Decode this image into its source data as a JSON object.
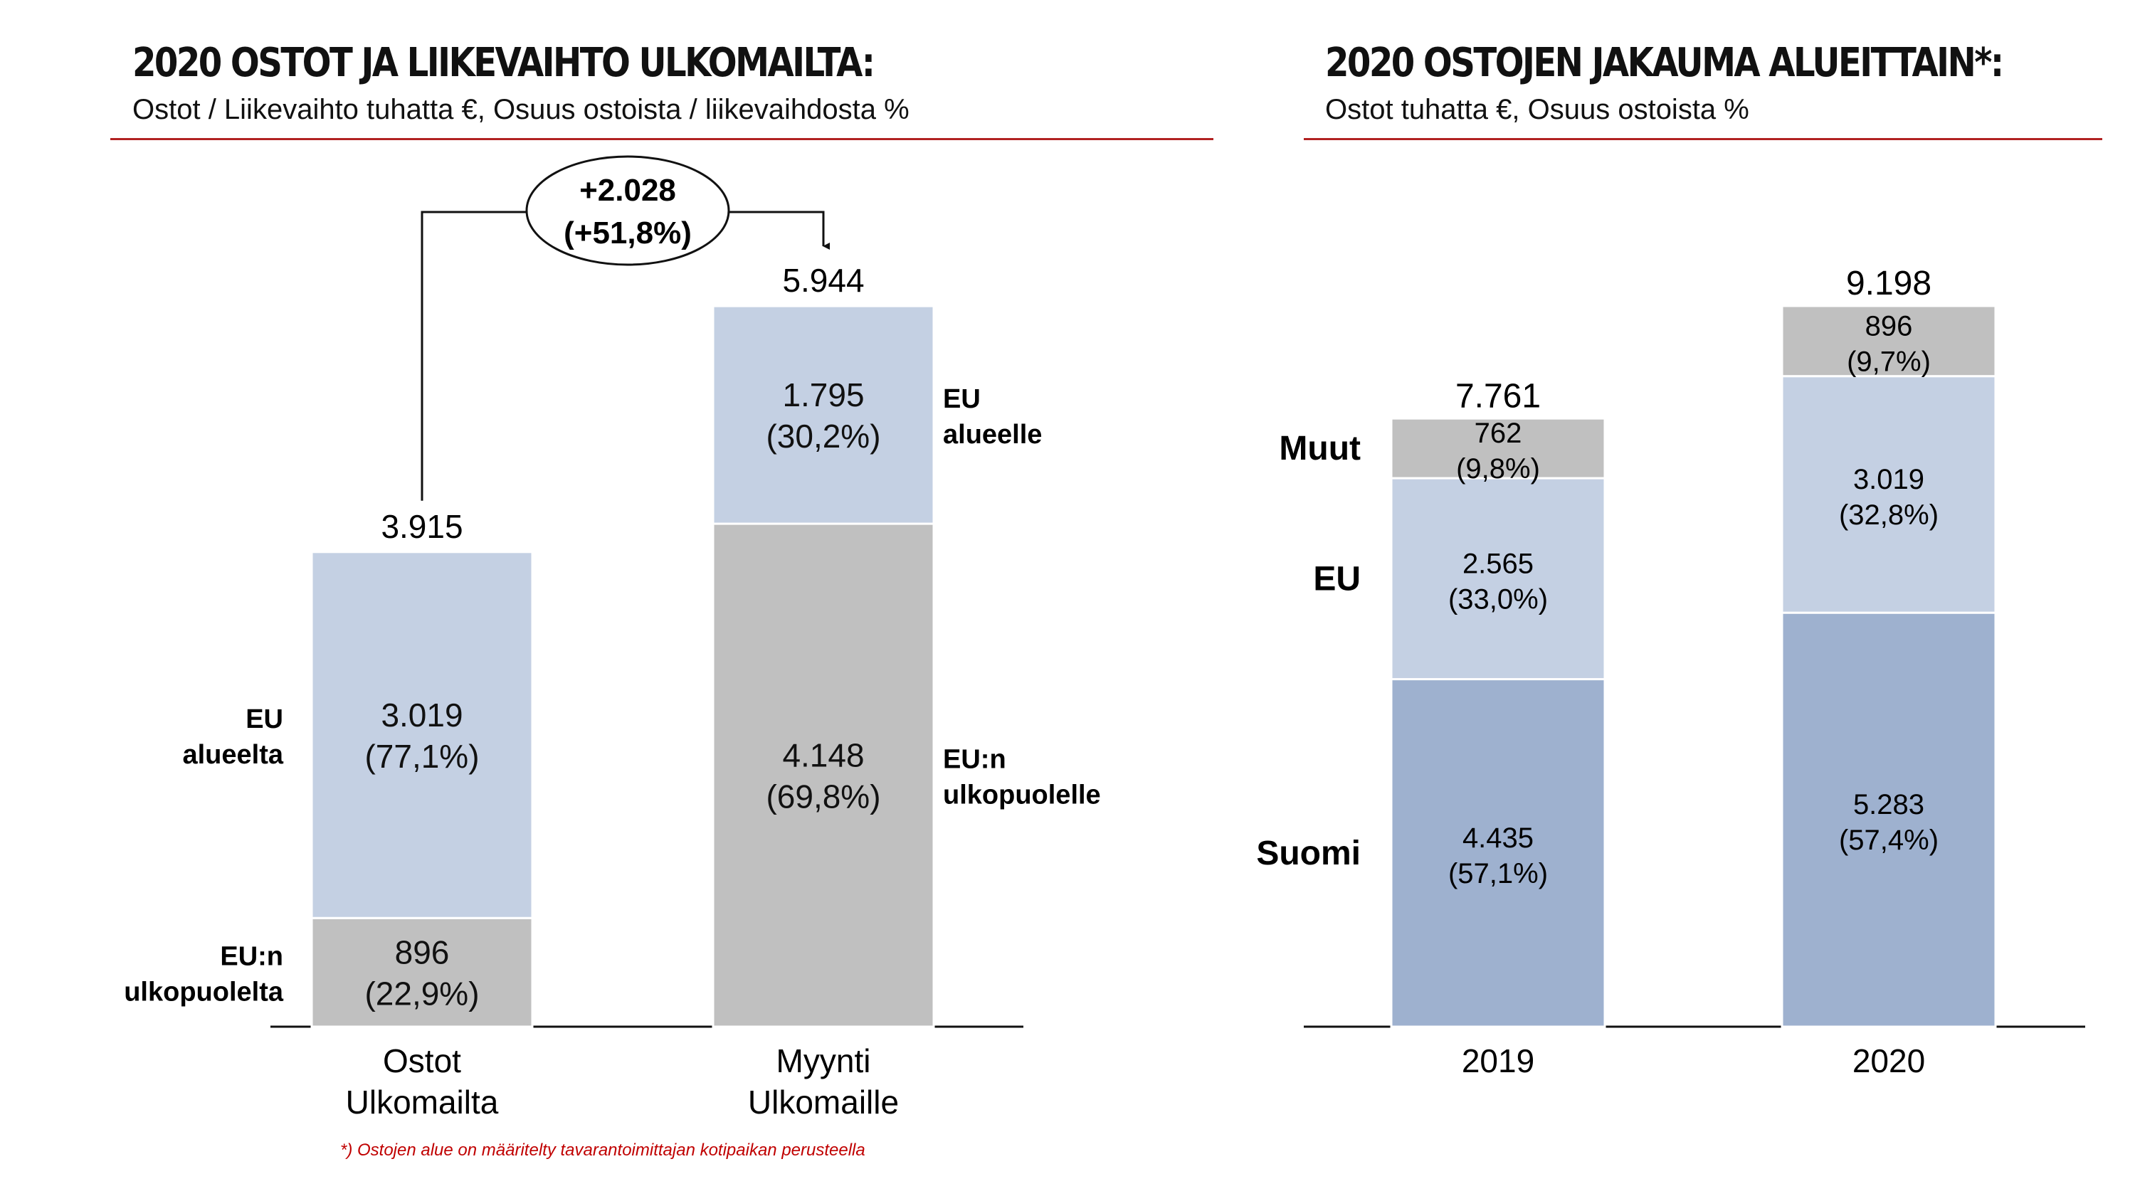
{
  "colors": {
    "eu_light": "#c4d0e3",
    "non_eu_gray": "#c0c0c0",
    "finland_blue": "#9eb1cf",
    "rule_red": "#b22222",
    "footnote_red": "#c00000"
  },
  "left_panel": {
    "title": "2020 OSTOT JA LIIKEVAIHTO ULKOMAILTA:",
    "subtitle": "Ostot / Liikevaihto tuhatta €, Osuus ostoista / liikevaihdosta %"
  },
  "right_panel": {
    "title": "2020 OSTOJEN JAKAUMA ALUEITTAIN*:",
    "subtitle": "Ostot tuhatta €, Osuus ostoista %"
  },
  "footnote": "*) Ostojen alue on määritelty tavarantoimittajan kotipaikan perusteella",
  "chart_data": [
    {
      "type": "bar",
      "stacked": true,
      "title": "2020 OSTOT JA LIIKEVAIHTO ULKOMAILTA:",
      "subtitle": "Ostot / Liikevaihto tuhatta €, Osuus ostoista / liikevaihdosta %",
      "ylim": [
        0,
        5944
      ],
      "categories": [
        {
          "line1": "Ostot",
          "line2": "Ulkomailta",
          "total": 3915,
          "total_label": "3.915"
        },
        {
          "line1": "Myynti",
          "line2": "Ulkomaille",
          "total": 5944,
          "total_label": "5.944"
        }
      ],
      "segments": [
        [
          {
            "series": "non_eu",
            "value": 896,
            "label": "896",
            "pct": "(22,9%)",
            "side_label": [
              "EU:n",
              "ulkopuolelta"
            ]
          },
          {
            "series": "eu",
            "value": 3019,
            "label": "3.019",
            "pct": "(77,1%)",
            "side_label": [
              "EU",
              "alueelta"
            ]
          }
        ],
        [
          {
            "series": "non_eu",
            "value": 4148,
            "label": "4.148",
            "pct": "(69,8%)",
            "side_label": [
              "EU:n",
              "ulkopuolelle"
            ]
          },
          {
            "series": "eu",
            "value": 1795,
            "label": "1.795",
            "pct": "(30,2%)",
            "side_label": [
              "EU",
              "alueelle"
            ]
          }
        ]
      ],
      "delta": {
        "line1": "+2.028",
        "line2": "(+51,8%)",
        "value": 2028
      }
    },
    {
      "type": "bar",
      "stacked": true,
      "title": "2020 OSTOJEN JAKAUMA ALUEITTAIN*:",
      "subtitle": "Ostot tuhatta €, Osuus ostoista %",
      "ylim": [
        0,
        9198
      ],
      "categories": [
        {
          "label": "2019",
          "total": 7761,
          "total_label": "7.761"
        },
        {
          "label": "2020",
          "total": 9198,
          "total_label": "9.198"
        }
      ],
      "series_labels": {
        "suomi": "Suomi",
        "eu": "EU",
        "muut": "Muut"
      },
      "segments": [
        [
          {
            "series": "suomi",
            "value": 4435,
            "label": "4.435",
            "pct": "(57,1%)"
          },
          {
            "series": "eu",
            "value": 2565,
            "label": "2.565",
            "pct": "(33,0%)"
          },
          {
            "series": "muut",
            "value": 762,
            "label": "762",
            "pct": "(9,8%)"
          }
        ],
        [
          {
            "series": "suomi",
            "value": 5283,
            "label": "5.283",
            "pct": "(57,4%)"
          },
          {
            "series": "eu",
            "value": 3019,
            "label": "3.019",
            "pct": "(32,8%)"
          },
          {
            "series": "muut",
            "value": 896,
            "label": "896",
            "pct": "(9,7%)"
          }
        ]
      ]
    }
  ]
}
